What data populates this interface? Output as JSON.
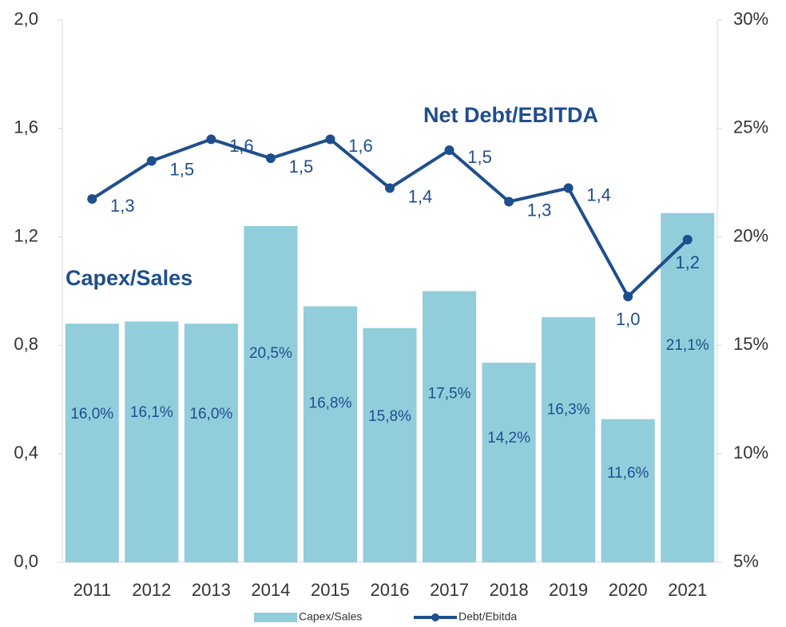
{
  "chart_data": {
    "type": "bar_line",
    "categories": [
      "2011",
      "2012",
      "2013",
      "2014",
      "2015",
      "2016",
      "2017",
      "2018",
      "2019",
      "2020",
      "2021"
    ],
    "series": [
      {
        "name": "Capex/Sales",
        "type": "bar",
        "axis": "y2",
        "color": "#92cddc",
        "values": [
          16.0,
          16.1,
          16.0,
          20.5,
          16.8,
          15.8,
          17.5,
          14.2,
          16.3,
          11.6,
          21.1
        ],
        "value_labels": [
          "16,0%",
          "16,1%",
          "16,0%",
          "20,5%",
          "16,8%",
          "15,8%",
          "17,5%",
          "14,2%",
          "16,3%",
          "11,6%",
          "21,1%"
        ]
      },
      {
        "name": "Debt/Ebitda",
        "type": "line",
        "axis": "y",
        "color": "#1f4e8c",
        "values": [
          1.34,
          1.48,
          1.56,
          1.49,
          1.56,
          1.38,
          1.52,
          1.33,
          1.38,
          0.98,
          1.19
        ],
        "value_labels": [
          "1,3",
          "1,5",
          "1,6",
          "1,5",
          "1,6",
          "1,4",
          "1,5",
          "1,3",
          "1,4",
          "1,0",
          "1,2"
        ]
      }
    ],
    "ylim": [
      0,
      2.0
    ],
    "yticks": [
      {
        "value": 0,
        "label": "0,0"
      },
      {
        "value": 0.4,
        "label": "0,4"
      },
      {
        "value": 0.8,
        "label": "0,8"
      },
      {
        "value": 1.2,
        "label": "1,2"
      },
      {
        "value": 1.6,
        "label": "1,6"
      },
      {
        "value": 2.0,
        "label": "2,0"
      }
    ],
    "y2lim": [
      5,
      30
    ],
    "y2ticks": [
      {
        "value": 5,
        "label": "5%"
      },
      {
        "value": 10,
        "label": "10%"
      },
      {
        "value": 15,
        "label": "15%"
      },
      {
        "value": 20,
        "label": "20%"
      },
      {
        "value": 25,
        "label": "25%"
      },
      {
        "value": 30,
        "label": "30%"
      }
    ],
    "annotations": [
      "Net Debt/EBITDA",
      "Capex/Sales"
    ],
    "legend": "bottom"
  }
}
